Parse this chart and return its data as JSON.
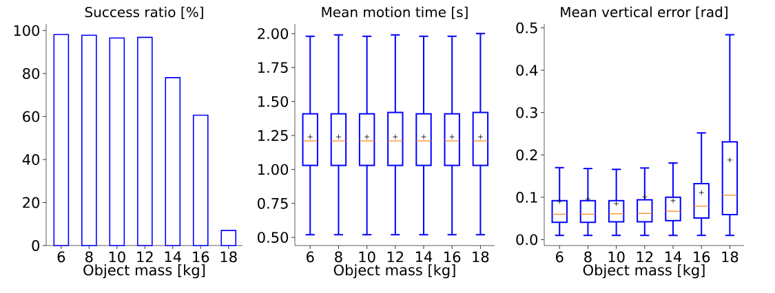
{
  "chart_data": [
    {
      "type": "bar",
      "title": "Success ratio [%]",
      "xlabel": "Object mass [kg]",
      "categories": [
        "6",
        "8",
        "10",
        "12",
        "14",
        "16",
        "18"
      ],
      "values": [
        98.1,
        97.8,
        96.5,
        96.8,
        78.1,
        60.6,
        7.0
      ],
      "color": "#0000ff",
      "ylim": [
        0,
        103
      ],
      "yticks": [
        0,
        20,
        40,
        60,
        80,
        100
      ]
    },
    {
      "type": "box",
      "title": "Mean motion time [s]",
      "xlabel": "Object mass [kg]",
      "categories": [
        "6",
        "8",
        "10",
        "12",
        "14",
        "16",
        "18"
      ],
      "color": "#0000ff",
      "ylim": [
        0.44,
        2.07
      ],
      "yticks": [
        {
          "value": 0.5,
          "label": "0.50"
        },
        0.75,
        {
          "value": 1.0,
          "label": "1.00"
        },
        1.25,
        {
          "value": 1.5,
          "label": "1.50"
        },
        1.75,
        {
          "value": 2.0,
          "label": "2.00"
        }
      ],
      "boxes": [
        {
          "low": 0.52,
          "q1": 1.03,
          "median": 1.21,
          "q3": 1.41,
          "high": 1.98,
          "mean": 1.24
        },
        {
          "low": 0.52,
          "q1": 1.03,
          "median": 1.21,
          "q3": 1.41,
          "high": 1.99,
          "mean": 1.24
        },
        {
          "low": 0.52,
          "q1": 1.03,
          "median": 1.21,
          "q3": 1.41,
          "high": 1.98,
          "mean": 1.24
        },
        {
          "low": 0.52,
          "q1": 1.03,
          "median": 1.21,
          "q3": 1.42,
          "high": 1.99,
          "mean": 1.24
        },
        {
          "low": 0.52,
          "q1": 1.03,
          "median": 1.21,
          "q3": 1.41,
          "high": 1.98,
          "mean": 1.24
        },
        {
          "low": 0.52,
          "q1": 1.03,
          "median": 1.21,
          "q3": 1.41,
          "high": 1.98,
          "mean": 1.24
        },
        {
          "low": 0.52,
          "q1": 1.03,
          "median": 1.21,
          "q3": 1.42,
          "high": 2.0,
          "mean": 1.24
        }
      ]
    },
    {
      "type": "box",
      "title": "Mean vertical error [rad]",
      "xlabel": "Object mass [kg]",
      "categories": [
        "6",
        "8",
        "10",
        "12",
        "14",
        "16",
        "18"
      ],
      "color": "#0000ff",
      "ylim": [
        -0.014,
        0.509
      ],
      "yticks": [
        {
          "value": 0,
          "label": "0.0"
        },
        0.1,
        0.2,
        0.3,
        0.4,
        0.5
      ],
      "boxes": [
        {
          "low": 0.01,
          "q1": 0.041,
          "median": 0.06,
          "q3": 0.092,
          "high": 0.17,
          "mean": 0.09
        },
        {
          "low": 0.01,
          "q1": 0.041,
          "median": 0.06,
          "q3": 0.092,
          "high": 0.168,
          "mean": 0.096
        },
        {
          "low": 0.01,
          "q1": 0.042,
          "median": 0.061,
          "q3": 0.092,
          "high": 0.166,
          "mean": 0.085
        },
        {
          "low": 0.01,
          "q1": 0.042,
          "median": 0.062,
          "q3": 0.094,
          "high": 0.169,
          "mean": 0.101
        },
        {
          "low": 0.01,
          "q1": 0.045,
          "median": 0.067,
          "q3": 0.1,
          "high": 0.181,
          "mean": 0.092
        },
        {
          "low": 0.01,
          "q1": 0.051,
          "median": 0.079,
          "q3": 0.132,
          "high": 0.252,
          "mean": 0.111
        },
        {
          "low": 0.01,
          "q1": 0.059,
          "median": 0.105,
          "q3": 0.231,
          "high": 0.484,
          "mean": 0.188
        }
      ]
    }
  ]
}
